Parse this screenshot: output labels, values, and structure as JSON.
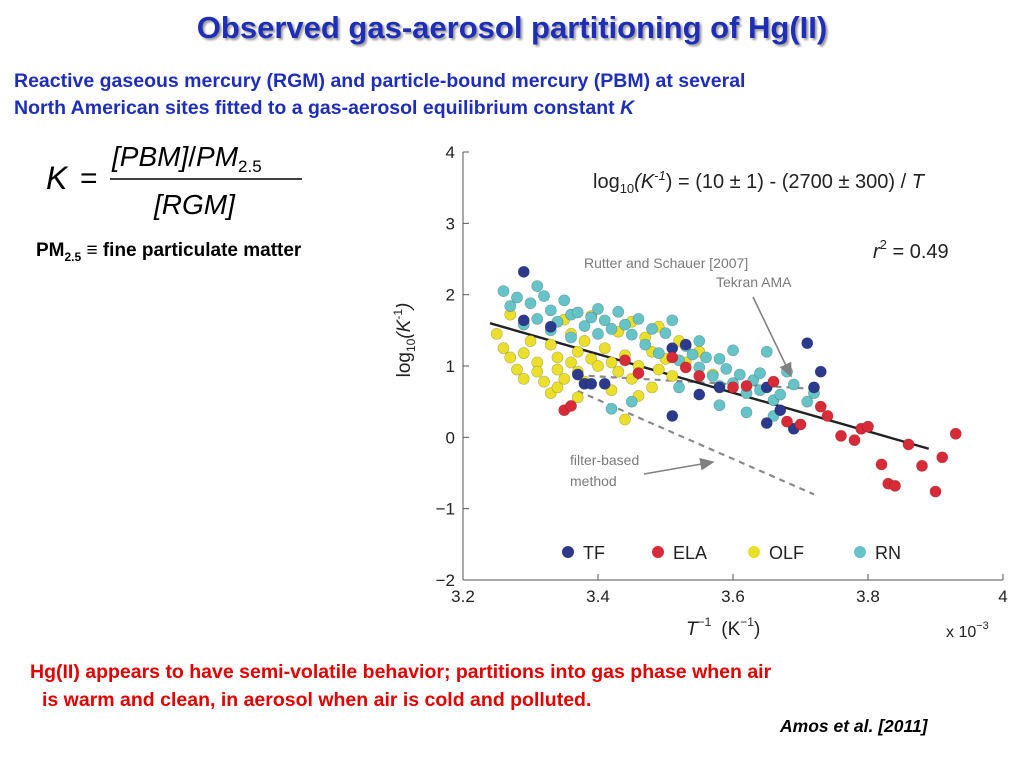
{
  "slide": {
    "title": "Observed gas-aerosol partitioning of Hg(II)",
    "subtitle_line1": "Reactive gaseous mercury (RGM) and particle-bound mercury (PBM) at several",
    "subtitle_line2": "North American sites fitted to a gas-aerosol equilibrium constant ",
    "subtitle_k": "K",
    "equation": {
      "lhs": "K",
      "equals": "=",
      "numerator_a": "[PBM]",
      "slash": "/",
      "numerator_b": "PM",
      "numerator_sub": "2.5",
      "denominator": "[RGM]"
    },
    "pm_definition": {
      "pm": "PM",
      "sub": "2.5",
      "rest": " ≡ fine particulate matter"
    },
    "conclusion_line1": "Hg(II) appears to have semi-volatile behavior; partitions into gas phase when air",
    "conclusion_line2": "is warm and clean, in aerosol when air is cold and polluted.",
    "citation": "Amos et al. [2011]",
    "colors": {
      "title": "#1f2eb8",
      "conclusion": "#e00000"
    }
  },
  "chart_data": {
    "type": "scatter",
    "xlabel_main": "T",
    "xlabel_sup": "−1",
    "xlabel_unit": "(K",
    "xlabel_unit_sup": "−1",
    "xlabel_unit_end": ")",
    "x_scale_main": "x 10",
    "x_scale_sup": "−3",
    "ylabel_main": "log",
    "ylabel_sub": "10",
    "ylabel_k": "(K",
    "ylabel_sup": "-1",
    "ylabel_end": ")",
    "xlim": [
      3.2,
      4.0
    ],
    "ylim": [
      -2,
      4
    ],
    "xticks": [
      3.2,
      3.4,
      3.6,
      3.8,
      4
    ],
    "xtick_labels": [
      "3.2",
      "3.4",
      "3.6",
      "3.8",
      "4"
    ],
    "yticks": [
      -2,
      -1,
      0,
      1,
      2,
      3,
      4
    ],
    "ytick_labels": [
      "−2",
      "−1",
      "0",
      "1",
      "2",
      "3",
      "4"
    ],
    "fit_text_pre": "log",
    "fit_text_sub": "10",
    "fit_text_k": "(K",
    "fit_text_sup": "-1",
    "fit_text_post": ") = (10 ± 1) - (2700 ± 300) / ",
    "fit_text_t": "T",
    "r2_text": "r",
    "r2_sup": "2",
    "r2_value": " = 0.49",
    "annotation_rutter": "Rutter and Schauer [2007]",
    "annotation_tekran": "Tekran AMA",
    "annotation_filter_line1": "filter-based",
    "annotation_filter_line2": "method",
    "fit_line": {
      "x": [
        3.24,
        3.89
      ],
      "y": [
        1.6,
        -0.16
      ]
    },
    "tekran_line": {
      "x": [
        3.37,
        3.72
      ],
      "y": [
        0.87,
        0.68
      ]
    },
    "filter_line": {
      "x": [
        3.37,
        3.72
      ],
      "y": [
        0.65,
        -0.8
      ]
    },
    "series": [
      {
        "name": "TF",
        "color": "#2b3a8c",
        "points": [
          [
            3.29,
            2.32
          ],
          [
            3.29,
            1.64
          ],
          [
            3.33,
            1.55
          ],
          [
            3.37,
            0.88
          ],
          [
            3.38,
            0.75
          ],
          [
            3.39,
            0.75
          ],
          [
            3.41,
            0.75
          ],
          [
            3.51,
            0.3
          ],
          [
            3.51,
            1.25
          ],
          [
            3.53,
            1.3
          ],
          [
            3.55,
            0.6
          ],
          [
            3.58,
            0.7
          ],
          [
            3.65,
            0.7
          ],
          [
            3.65,
            0.2
          ],
          [
            3.67,
            0.38
          ],
          [
            3.69,
            0.12
          ],
          [
            3.71,
            1.32
          ],
          [
            3.72,
            0.7
          ],
          [
            3.73,
            0.92
          ]
        ]
      },
      {
        "name": "ELA",
        "color": "#d92b37",
        "points": [
          [
            3.35,
            0.38
          ],
          [
            3.36,
            0.44
          ],
          [
            3.44,
            1.08
          ],
          [
            3.46,
            0.9
          ],
          [
            3.51,
            1.12
          ],
          [
            3.53,
            0.98
          ],
          [
            3.55,
            0.86
          ],
          [
            3.6,
            0.7
          ],
          [
            3.62,
            0.72
          ],
          [
            3.66,
            0.78
          ],
          [
            3.68,
            0.22
          ],
          [
            3.7,
            0.18
          ],
          [
            3.73,
            0.43
          ],
          [
            3.74,
            0.3
          ],
          [
            3.76,
            0.02
          ],
          [
            3.78,
            -0.04
          ],
          [
            3.79,
            0.12
          ],
          [
            3.8,
            0.15
          ],
          [
            3.82,
            -0.38
          ],
          [
            3.83,
            -0.65
          ],
          [
            3.84,
            -0.68
          ],
          [
            3.86,
            -0.1
          ],
          [
            3.88,
            -0.4
          ],
          [
            3.9,
            -0.76
          ],
          [
            3.91,
            -0.28
          ],
          [
            3.93,
            0.05
          ]
        ]
      },
      {
        "name": "OLF",
        "color": "#eadf2a",
        "points": [
          [
            3.25,
            1.45
          ],
          [
            3.26,
            1.25
          ],
          [
            3.27,
            1.12
          ],
          [
            3.28,
            0.95
          ],
          [
            3.29,
            0.82
          ],
          [
            3.3,
            1.35
          ],
          [
            3.31,
            1.05
          ],
          [
            3.32,
            0.78
          ],
          [
            3.33,
            1.3
          ],
          [
            3.33,
            0.62
          ],
          [
            3.34,
            1.12
          ],
          [
            3.34,
            0.95
          ],
          [
            3.35,
            1.65
          ],
          [
            3.35,
            0.82
          ],
          [
            3.36,
            1.45
          ],
          [
            3.36,
            1.05
          ],
          [
            3.37,
            1.2
          ],
          [
            3.37,
            0.92
          ],
          [
            3.38,
            1.35
          ],
          [
            3.39,
            1.1
          ],
          [
            3.39,
            1.7
          ],
          [
            3.4,
            1.0
          ],
          [
            3.41,
            1.25
          ],
          [
            3.42,
            1.05
          ],
          [
            3.43,
            1.48
          ],
          [
            3.43,
            0.92
          ],
          [
            3.44,
            1.15
          ],
          [
            3.45,
            0.82
          ],
          [
            3.45,
            1.62
          ],
          [
            3.46,
            1.0
          ],
          [
            3.47,
            1.4
          ],
          [
            3.48,
            1.2
          ],
          [
            3.49,
            0.95
          ],
          [
            3.49,
            1.55
          ],
          [
            3.5,
            1.1
          ],
          [
            3.51,
            0.86
          ],
          [
            3.52,
            1.35
          ],
          [
            3.53,
            1.05
          ],
          [
            3.55,
            1.2
          ],
          [
            3.57,
            0.88
          ],
          [
            3.29,
            1.18
          ],
          [
            3.31,
            0.92
          ],
          [
            3.34,
            0.7
          ],
          [
            3.38,
            0.78
          ],
          [
            3.42,
            0.66
          ],
          [
            3.46,
            0.58
          ],
          [
            3.48,
            0.7
          ],
          [
            3.44,
            0.25
          ],
          [
            3.37,
            0.56
          ],
          [
            3.27,
            1.72
          ]
        ]
      },
      {
        "name": "RN",
        "color": "#66c4c8",
        "points": [
          [
            3.26,
            2.05
          ],
          [
            3.27,
            1.84
          ],
          [
            3.28,
            1.96
          ],
          [
            3.29,
            1.58
          ],
          [
            3.3,
            1.88
          ],
          [
            3.31,
            2.12
          ],
          [
            3.31,
            1.66
          ],
          [
            3.32,
            1.98
          ],
          [
            3.33,
            1.78
          ],
          [
            3.34,
            1.62
          ],
          [
            3.35,
            1.92
          ],
          [
            3.36,
            1.72
          ],
          [
            3.37,
            1.75
          ],
          [
            3.38,
            1.56
          ],
          [
            3.39,
            1.68
          ],
          [
            3.4,
            1.8
          ],
          [
            3.41,
            1.64
          ],
          [
            3.42,
            1.52
          ],
          [
            3.43,
            1.76
          ],
          [
            3.44,
            1.58
          ],
          [
            3.45,
            1.44
          ],
          [
            3.46,
            1.66
          ],
          [
            3.47,
            1.3
          ],
          [
            3.48,
            1.52
          ],
          [
            3.49,
            1.18
          ],
          [
            3.5,
            1.46
          ],
          [
            3.51,
            1.64
          ],
          [
            3.52,
            1.08
          ],
          [
            3.53,
            1.28
          ],
          [
            3.54,
            1.16
          ],
          [
            3.55,
            0.98
          ],
          [
            3.56,
            1.12
          ],
          [
            3.57,
            0.86
          ],
          [
            3.58,
            0.72
          ],
          [
            3.59,
            0.96
          ],
          [
            3.6,
            0.76
          ],
          [
            3.61,
            0.88
          ],
          [
            3.62,
            0.62
          ],
          [
            3.63,
            0.8
          ],
          [
            3.64,
            0.66
          ],
          [
            3.66,
            0.52
          ],
          [
            3.67,
            0.6
          ],
          [
            3.69,
            0.74
          ],
          [
            3.71,
            0.5
          ],
          [
            3.72,
            0.62
          ],
          [
            3.55,
            1.35
          ],
          [
            3.58,
            1.1
          ],
          [
            3.6,
            1.22
          ],
          [
            3.64,
            0.9
          ],
          [
            3.65,
            1.2
          ],
          [
            3.42,
            0.4
          ],
          [
            3.45,
            0.5
          ],
          [
            3.52,
            0.7
          ],
          [
            3.58,
            0.45
          ],
          [
            3.62,
            0.35
          ],
          [
            3.66,
            0.3
          ],
          [
            3.68,
            0.92
          ],
          [
            3.4,
            1.45
          ],
          [
            3.36,
            1.4
          ],
          [
            3.33,
            1.5
          ]
        ]
      }
    ]
  }
}
